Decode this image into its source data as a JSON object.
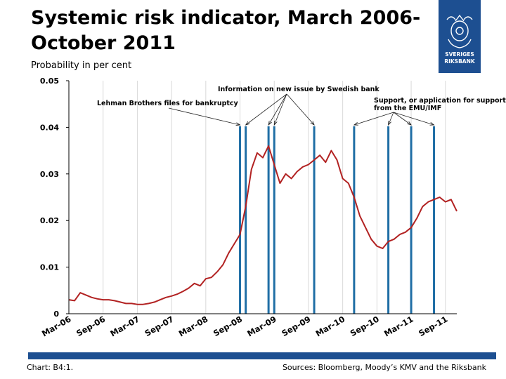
{
  "header": {
    "title_line1": "Systemic risk indicator, March 2006-",
    "title_line2": "October 2011",
    "subtitle": "Probability in per cent"
  },
  "logo": {
    "icon": "riksbank-crest-icon",
    "line1": "SVERIGES",
    "line2": "RIKSBANK"
  },
  "footer": {
    "chart_id": "Chart: B4:1.",
    "sources": "Sources: Bloomberg, Moody’s KMV and the Riksbank"
  },
  "colors": {
    "series": "#b22222",
    "event_lines": "#1f6ea5",
    "brand": "#1d4f91",
    "grid": "#d9d9d9"
  },
  "chart_data": {
    "type": "line",
    "title": "Systemic risk indicator, March 2006-October 2011",
    "ylabel": "Probability in per cent",
    "xlabel": "",
    "ylim": [
      0,
      0.05
    ],
    "yticks": [
      "0",
      "0.01",
      "0.02",
      "0.03",
      "0.04",
      "0.05"
    ],
    "ytick_values": [
      0,
      0.01,
      0.02,
      0.03,
      0.04,
      0.05
    ],
    "xlim": [
      "2006-03",
      "2011-11"
    ],
    "xticks": [
      "Mar-06",
      "Sep-06",
      "Mar-07",
      "Sep-07",
      "Mar-08",
      "Sep-08",
      "Mar-09",
      "Sep-09",
      "Mar-10",
      "Sep-10",
      "Mar-11",
      "Sep-11"
    ],
    "xtick_dates": [
      "2006-03",
      "2006-09",
      "2007-03",
      "2007-09",
      "2008-03",
      "2008-09",
      "2009-03",
      "2009-09",
      "2010-03",
      "2010-09",
      "2011-03",
      "2011-09"
    ],
    "grid": "vertical",
    "series": [
      {
        "name": "",
        "x": [
          "2006-03",
          "2006-04",
          "2006-05",
          "2006-06",
          "2006-07",
          "2006-08",
          "2006-09",
          "2006-10",
          "2006-11",
          "2006-12",
          "2007-01",
          "2007-02",
          "2007-03",
          "2007-04",
          "2007-05",
          "2007-06",
          "2007-07",
          "2007-08",
          "2007-09",
          "2007-10",
          "2007-11",
          "2007-12",
          "2008-01",
          "2008-02",
          "2008-03",
          "2008-04",
          "2008-05",
          "2008-06",
          "2008-07",
          "2008-08",
          "2008-09",
          "2008-10",
          "2008-11",
          "2008-12",
          "2009-01",
          "2009-02",
          "2009-03",
          "2009-04",
          "2009-05",
          "2009-06",
          "2009-07",
          "2009-08",
          "2009-09",
          "2009-10",
          "2009-11",
          "2009-12",
          "2010-01",
          "2010-02",
          "2010-03",
          "2010-04",
          "2010-05",
          "2010-06",
          "2010-07",
          "2010-08",
          "2010-09",
          "2010-10",
          "2010-11",
          "2010-12",
          "2011-01",
          "2011-02",
          "2011-03",
          "2011-04",
          "2011-05",
          "2011-06",
          "2011-07",
          "2011-08",
          "2011-09",
          "2011-10",
          "2011-11"
        ],
        "values": [
          0.003,
          0.0028,
          0.0045,
          0.004,
          0.0035,
          0.0032,
          0.003,
          0.003,
          0.0028,
          0.0025,
          0.0022,
          0.0022,
          0.002,
          0.002,
          0.0022,
          0.0025,
          0.003,
          0.0035,
          0.0038,
          0.0042,
          0.0048,
          0.0055,
          0.0065,
          0.006,
          0.0075,
          0.0078,
          0.009,
          0.0105,
          0.013,
          0.015,
          0.017,
          0.023,
          0.031,
          0.0345,
          0.0335,
          0.036,
          0.032,
          0.028,
          0.03,
          0.029,
          0.0305,
          0.0315,
          0.032,
          0.033,
          0.034,
          0.0325,
          0.035,
          0.033,
          0.029,
          0.028,
          0.025,
          0.021,
          0.0185,
          0.016,
          0.0145,
          0.014,
          0.0155,
          0.016,
          0.017,
          0.0175,
          0.0185,
          0.0205,
          0.023,
          0.024,
          0.0245,
          0.025,
          0.024,
          0.0245,
          0.022
        ]
      }
    ],
    "event_lines": [
      "2008-09",
      "2008-10",
      "2009-02",
      "2009-03",
      "2009-10",
      "2010-05",
      "2010-11",
      "2011-03",
      "2011-07"
    ],
    "annotations": [
      {
        "text": "Lehman Brothers files for bankruptcy",
        "targets": [
          "2008-09"
        ]
      },
      {
        "text": "Information on new issue by Swedish bank",
        "targets": [
          "2008-10",
          "2009-02",
          "2009-03",
          "2009-10"
        ]
      },
      {
        "text": "Support, or application for support,",
        "text2": "from the EMU/IMF",
        "targets": [
          "2010-05",
          "2010-11",
          "2011-03",
          "2011-07"
        ]
      }
    ]
  }
}
